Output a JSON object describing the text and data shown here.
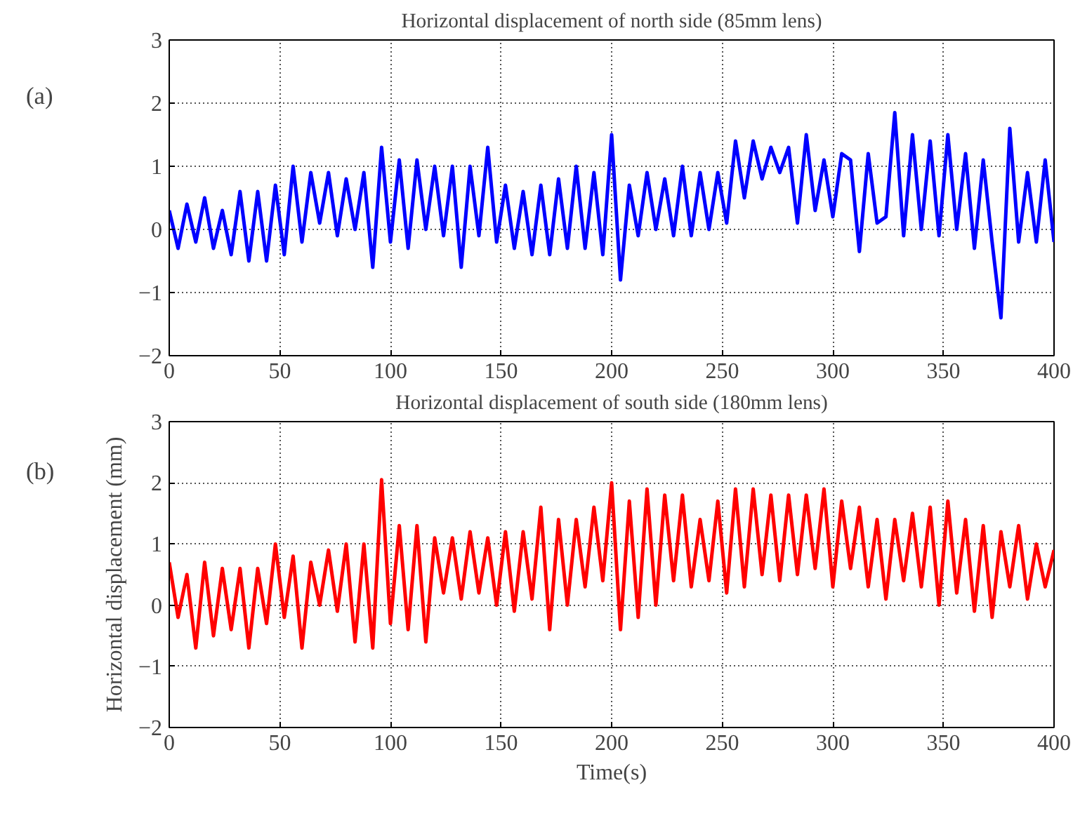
{
  "chart_data": [
    {
      "type": "line",
      "title": "Horizontal displacement of north side (85mm lens)",
      "annotations": [
        "(a)"
      ],
      "x": [
        0,
        4,
        8,
        12,
        16,
        20,
        24,
        28,
        32,
        36,
        40,
        44,
        48,
        52,
        56,
        60,
        64,
        68,
        72,
        76,
        80,
        84,
        88,
        92,
        96,
        100,
        104,
        108,
        112,
        116,
        120,
        124,
        128,
        132,
        136,
        140,
        144,
        148,
        152,
        156,
        160,
        164,
        168,
        172,
        176,
        180,
        184,
        188,
        192,
        196,
        200,
        204,
        208,
        212,
        216,
        220,
        224,
        228,
        232,
        236,
        240,
        244,
        248,
        252,
        256,
        260,
        264,
        268,
        272,
        276,
        280,
        284,
        288,
        292,
        296,
        300,
        304,
        308,
        312,
        316,
        320,
        324,
        328,
        332,
        336,
        340,
        344,
        348,
        352,
        356,
        360,
        364,
        368,
        372,
        376,
        380,
        384,
        388,
        392,
        396,
        400
      ],
      "series": [
        {
          "color": "#0000ff",
          "values": [
            0.3,
            -0.3,
            0.4,
            -0.2,
            0.5,
            -0.3,
            0.3,
            -0.4,
            0.6,
            -0.5,
            0.6,
            -0.5,
            0.7,
            -0.4,
            1.0,
            -0.2,
            0.9,
            0.1,
            0.9,
            -0.1,
            0.8,
            0.0,
            0.9,
            -0.6,
            1.3,
            -0.2,
            1.1,
            -0.3,
            1.1,
            0.0,
            1.0,
            -0.1,
            1.0,
            -0.6,
            1.0,
            -0.1,
            1.3,
            -0.2,
            0.7,
            -0.3,
            0.6,
            -0.4,
            0.7,
            -0.4,
            0.8,
            -0.3,
            1.0,
            -0.3,
            0.9,
            -0.4,
            1.5,
            -0.8,
            0.7,
            -0.1,
            0.9,
            0.0,
            0.8,
            -0.1,
            1.0,
            -0.1,
            0.9,
            0.0,
            0.9,
            0.1,
            1.4,
            0.5,
            1.4,
            0.8,
            1.3,
            0.9,
            1.3,
            0.1,
            1.5,
            0.3,
            1.1,
            0.2,
            1.2,
            1.1,
            -0.35,
            1.2,
            0.1,
            0.2,
            1.85,
            -0.1,
            1.5,
            0.0,
            1.4,
            -0.1,
            1.5,
            0.0,
            1.2,
            -0.3,
            1.1,
            -0.2,
            -1.4,
            1.6,
            -0.2,
            0.9,
            -0.2,
            1.1,
            -0.2
          ]
        }
      ],
      "xlim": [
        0,
        400
      ],
      "ylim": [
        -2,
        3
      ],
      "xticks": [
        0,
        50,
        100,
        150,
        200,
        250,
        300,
        350,
        400
      ],
      "yticks": [
        -2,
        -1,
        0,
        1,
        2,
        3
      ],
      "grid": true,
      "line_style": "solid"
    },
    {
      "type": "line",
      "title": "Horizontal displacement of south side (180mm lens)",
      "annotations": [
        "(b)"
      ],
      "xlabel": "Time(s)",
      "ylabel": "Horizontal displacement (mm)",
      "x": [
        0,
        4,
        8,
        12,
        16,
        20,
        24,
        28,
        32,
        36,
        40,
        44,
        48,
        52,
        56,
        60,
        64,
        68,
        72,
        76,
        80,
        84,
        88,
        92,
        96,
        100,
        104,
        108,
        112,
        116,
        120,
        124,
        128,
        132,
        136,
        140,
        144,
        148,
        152,
        156,
        160,
        164,
        168,
        172,
        176,
        180,
        184,
        188,
        192,
        196,
        200,
        204,
        208,
        212,
        216,
        220,
        224,
        228,
        232,
        236,
        240,
        244,
        248,
        252,
        256,
        260,
        264,
        268,
        272,
        276,
        280,
        284,
        288,
        292,
        296,
        300,
        304,
        308,
        312,
        316,
        320,
        324,
        328,
        332,
        336,
        340,
        344,
        348,
        352,
        356,
        360,
        364,
        368,
        372,
        376,
        380,
        384,
        388,
        392,
        396,
        400
      ],
      "series": [
        {
          "color": "#ff0000",
          "values": [
            0.7,
            -0.2,
            0.5,
            -0.7,
            0.7,
            -0.5,
            0.6,
            -0.4,
            0.6,
            -0.7,
            0.6,
            -0.3,
            1.0,
            -0.2,
            0.8,
            -0.7,
            0.7,
            0.0,
            0.9,
            -0.1,
            1.0,
            -0.6,
            1.0,
            -0.7,
            2.05,
            -0.3,
            1.3,
            -0.4,
            1.3,
            -0.6,
            1.1,
            0.2,
            1.1,
            0.1,
            1.2,
            0.2,
            1.1,
            0.0,
            1.2,
            -0.1,
            1.2,
            0.1,
            1.6,
            -0.4,
            1.4,
            0.0,
            1.4,
            0.3,
            1.6,
            0.4,
            2.0,
            -0.4,
            1.7,
            -0.2,
            1.9,
            0.0,
            1.8,
            0.4,
            1.8,
            0.3,
            1.4,
            0.4,
            1.7,
            0.2,
            1.9,
            0.3,
            1.9,
            0.5,
            1.8,
            0.4,
            1.8,
            0.5,
            1.8,
            0.6,
            1.9,
            0.3,
            1.7,
            0.6,
            1.6,
            0.3,
            1.4,
            0.1,
            1.4,
            0.4,
            1.5,
            0.3,
            1.6,
            0.0,
            1.7,
            0.2,
            1.4,
            -0.1,
            1.3,
            -0.2,
            1.2,
            0.3,
            1.3,
            0.1,
            1.0,
            0.3,
            0.9
          ]
        }
      ],
      "xlim": [
        0,
        400
      ],
      "ylim": [
        -2,
        3
      ],
      "xticks": [
        0,
        50,
        100,
        150,
        200,
        250,
        300,
        350,
        400
      ],
      "yticks": [
        -2,
        -1,
        0,
        1,
        2,
        3
      ],
      "grid": true,
      "line_style": "solid"
    }
  ]
}
